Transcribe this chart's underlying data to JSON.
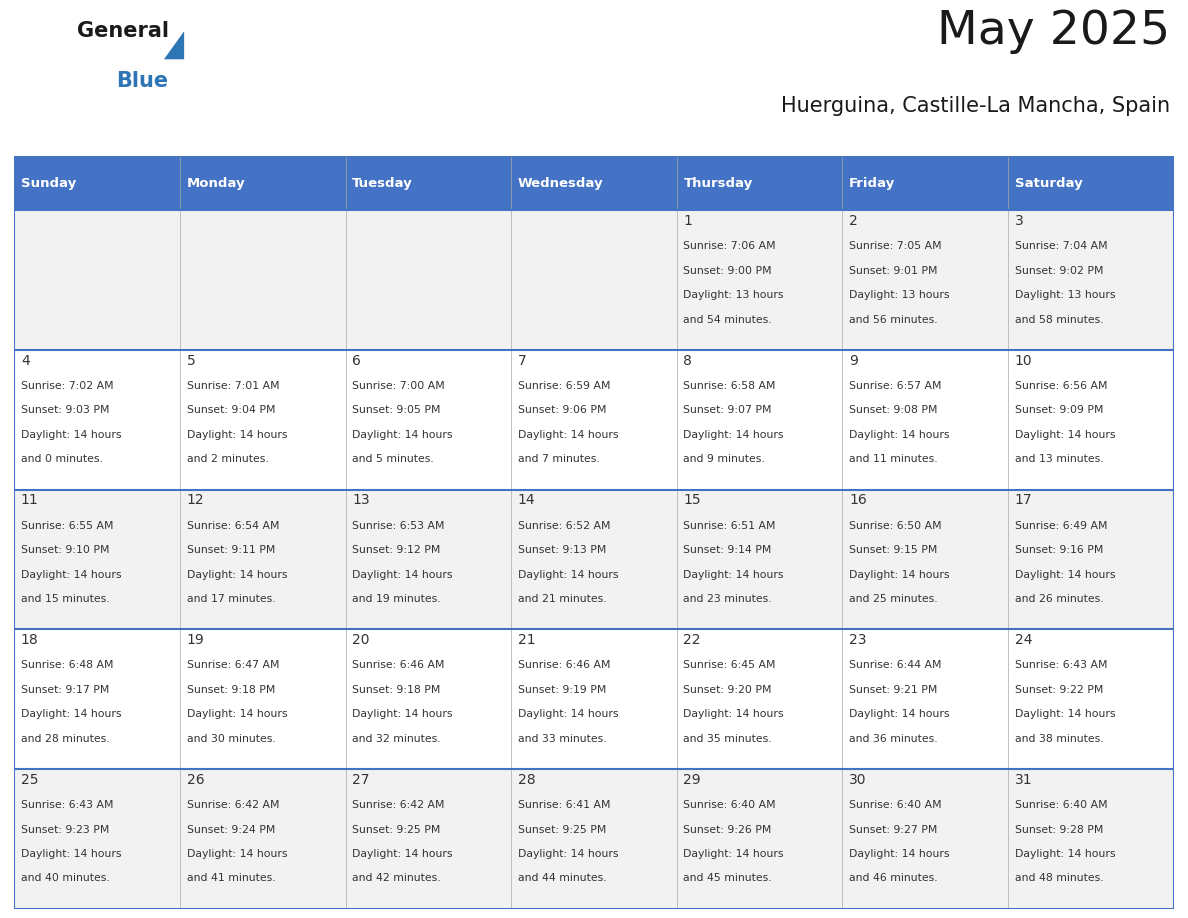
{
  "title": "May 2025",
  "subtitle": "Huerguina, Castille-La Mancha, Spain",
  "days_of_week": [
    "Sunday",
    "Monday",
    "Tuesday",
    "Wednesday",
    "Thursday",
    "Friday",
    "Saturday"
  ],
  "header_bg": "#4472C4",
  "header_text": "#FFFFFF",
  "row_bg_even": "#F2F2F2",
  "row_bg_odd": "#FFFFFF",
  "border_color": "#4472C4",
  "cell_border_color": "#AAAAAA",
  "text_color": "#333333",
  "calendar_data": [
    [
      null,
      null,
      null,
      null,
      {
        "day": 1,
        "sunrise": "7:06 AM",
        "sunset": "9:00 PM",
        "daylight": "13 hours and 54 minutes."
      },
      {
        "day": 2,
        "sunrise": "7:05 AM",
        "sunset": "9:01 PM",
        "daylight": "13 hours and 56 minutes."
      },
      {
        "day": 3,
        "sunrise": "7:04 AM",
        "sunset": "9:02 PM",
        "daylight": "13 hours and 58 minutes."
      }
    ],
    [
      {
        "day": 4,
        "sunrise": "7:02 AM",
        "sunset": "9:03 PM",
        "daylight": "14 hours and 0 minutes."
      },
      {
        "day": 5,
        "sunrise": "7:01 AM",
        "sunset": "9:04 PM",
        "daylight": "14 hours and 2 minutes."
      },
      {
        "day": 6,
        "sunrise": "7:00 AM",
        "sunset": "9:05 PM",
        "daylight": "14 hours and 5 minutes."
      },
      {
        "day": 7,
        "sunrise": "6:59 AM",
        "sunset": "9:06 PM",
        "daylight": "14 hours and 7 minutes."
      },
      {
        "day": 8,
        "sunrise": "6:58 AM",
        "sunset": "9:07 PM",
        "daylight": "14 hours and 9 minutes."
      },
      {
        "day": 9,
        "sunrise": "6:57 AM",
        "sunset": "9:08 PM",
        "daylight": "14 hours and 11 minutes."
      },
      {
        "day": 10,
        "sunrise": "6:56 AM",
        "sunset": "9:09 PM",
        "daylight": "14 hours and 13 minutes."
      }
    ],
    [
      {
        "day": 11,
        "sunrise": "6:55 AM",
        "sunset": "9:10 PM",
        "daylight": "14 hours and 15 minutes."
      },
      {
        "day": 12,
        "sunrise": "6:54 AM",
        "sunset": "9:11 PM",
        "daylight": "14 hours and 17 minutes."
      },
      {
        "day": 13,
        "sunrise": "6:53 AM",
        "sunset": "9:12 PM",
        "daylight": "14 hours and 19 minutes."
      },
      {
        "day": 14,
        "sunrise": "6:52 AM",
        "sunset": "9:13 PM",
        "daylight": "14 hours and 21 minutes."
      },
      {
        "day": 15,
        "sunrise": "6:51 AM",
        "sunset": "9:14 PM",
        "daylight": "14 hours and 23 minutes."
      },
      {
        "day": 16,
        "sunrise": "6:50 AM",
        "sunset": "9:15 PM",
        "daylight": "14 hours and 25 minutes."
      },
      {
        "day": 17,
        "sunrise": "6:49 AM",
        "sunset": "9:16 PM",
        "daylight": "14 hours and 26 minutes."
      }
    ],
    [
      {
        "day": 18,
        "sunrise": "6:48 AM",
        "sunset": "9:17 PM",
        "daylight": "14 hours and 28 minutes."
      },
      {
        "day": 19,
        "sunrise": "6:47 AM",
        "sunset": "9:18 PM",
        "daylight": "14 hours and 30 minutes."
      },
      {
        "day": 20,
        "sunrise": "6:46 AM",
        "sunset": "9:18 PM",
        "daylight": "14 hours and 32 minutes."
      },
      {
        "day": 21,
        "sunrise": "6:46 AM",
        "sunset": "9:19 PM",
        "daylight": "14 hours and 33 minutes."
      },
      {
        "day": 22,
        "sunrise": "6:45 AM",
        "sunset": "9:20 PM",
        "daylight": "14 hours and 35 minutes."
      },
      {
        "day": 23,
        "sunrise": "6:44 AM",
        "sunset": "9:21 PM",
        "daylight": "14 hours and 36 minutes."
      },
      {
        "day": 24,
        "sunrise": "6:43 AM",
        "sunset": "9:22 PM",
        "daylight": "14 hours and 38 minutes."
      }
    ],
    [
      {
        "day": 25,
        "sunrise": "6:43 AM",
        "sunset": "9:23 PM",
        "daylight": "14 hours and 40 minutes."
      },
      {
        "day": 26,
        "sunrise": "6:42 AM",
        "sunset": "9:24 PM",
        "daylight": "14 hours and 41 minutes."
      },
      {
        "day": 27,
        "sunrise": "6:42 AM",
        "sunset": "9:25 PM",
        "daylight": "14 hours and 42 minutes."
      },
      {
        "day": 28,
        "sunrise": "6:41 AM",
        "sunset": "9:25 PM",
        "daylight": "14 hours and 44 minutes."
      },
      {
        "day": 29,
        "sunrise": "6:40 AM",
        "sunset": "9:26 PM",
        "daylight": "14 hours and 45 minutes."
      },
      {
        "day": 30,
        "sunrise": "6:40 AM",
        "sunset": "9:27 PM",
        "daylight": "14 hours and 46 minutes."
      },
      {
        "day": 31,
        "sunrise": "6:40 AM",
        "sunset": "9:28 PM",
        "daylight": "14 hours and 48 minutes."
      }
    ]
  ]
}
